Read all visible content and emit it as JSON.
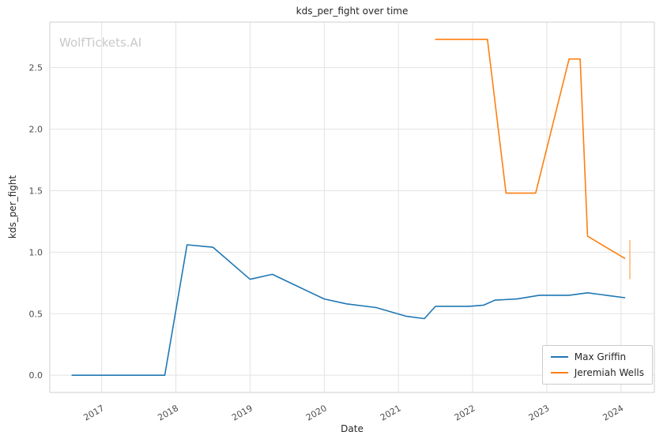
{
  "watermark": "WolfTickets.AI",
  "chart_data": {
    "type": "line",
    "title": "kds_per_fight over time",
    "xlabel": "Date",
    "ylabel": "kds_per_fight",
    "xlim": [
      2016.3,
      2024.45
    ],
    "ylim": [
      -0.14,
      2.87
    ],
    "xticks": [
      2017,
      2018,
      2019,
      2020,
      2021,
      2022,
      2023,
      2024
    ],
    "yticks": [
      0.0,
      0.5,
      1.0,
      1.5,
      2.0,
      2.5
    ],
    "grid": true,
    "legend_position": "lower right",
    "colors": {
      "background": "#ffffff",
      "grid": "#e3e3e3",
      "spine": "#cfcfcf",
      "tick_label": "#4d4d4d",
      "title": "#262626",
      "watermark": "#c9c9c9"
    },
    "series": [
      {
        "name": "Max Griffin",
        "color": "#1f77b4",
        "x": [
          2016.6,
          2017.0,
          2017.45,
          2017.85,
          2018.15,
          2018.5,
          2019.0,
          2019.3,
          2019.65,
          2020.0,
          2020.3,
          2020.7,
          2021.1,
          2021.35,
          2021.5,
          2021.95,
          2022.15,
          2022.3,
          2022.6,
          2022.9,
          2023.3,
          2023.55,
          2023.8,
          2024.05
        ],
        "y": [
          0.0,
          0.0,
          0.0,
          0.0,
          1.06,
          1.04,
          0.78,
          0.82,
          0.72,
          0.62,
          0.58,
          0.55,
          0.48,
          0.46,
          0.56,
          0.56,
          0.57,
          0.61,
          0.62,
          0.65,
          0.65,
          0.67,
          0.65,
          0.63
        ]
      },
      {
        "name": "Jeremiah Wells",
        "color": "#ff7f0e",
        "x": [
          2021.5,
          2022.2,
          2022.45,
          2022.85,
          2023.3,
          2023.45,
          2023.55,
          2024.05
        ],
        "y": [
          2.73,
          2.73,
          1.48,
          1.48,
          2.57,
          2.57,
          1.13,
          0.95
        ]
      }
    ],
    "annotations": [
      {
        "type": "vline-segment",
        "x": 2024.12,
        "y1": 0.78,
        "y2": 1.1,
        "color": "#ffbb78"
      }
    ]
  }
}
